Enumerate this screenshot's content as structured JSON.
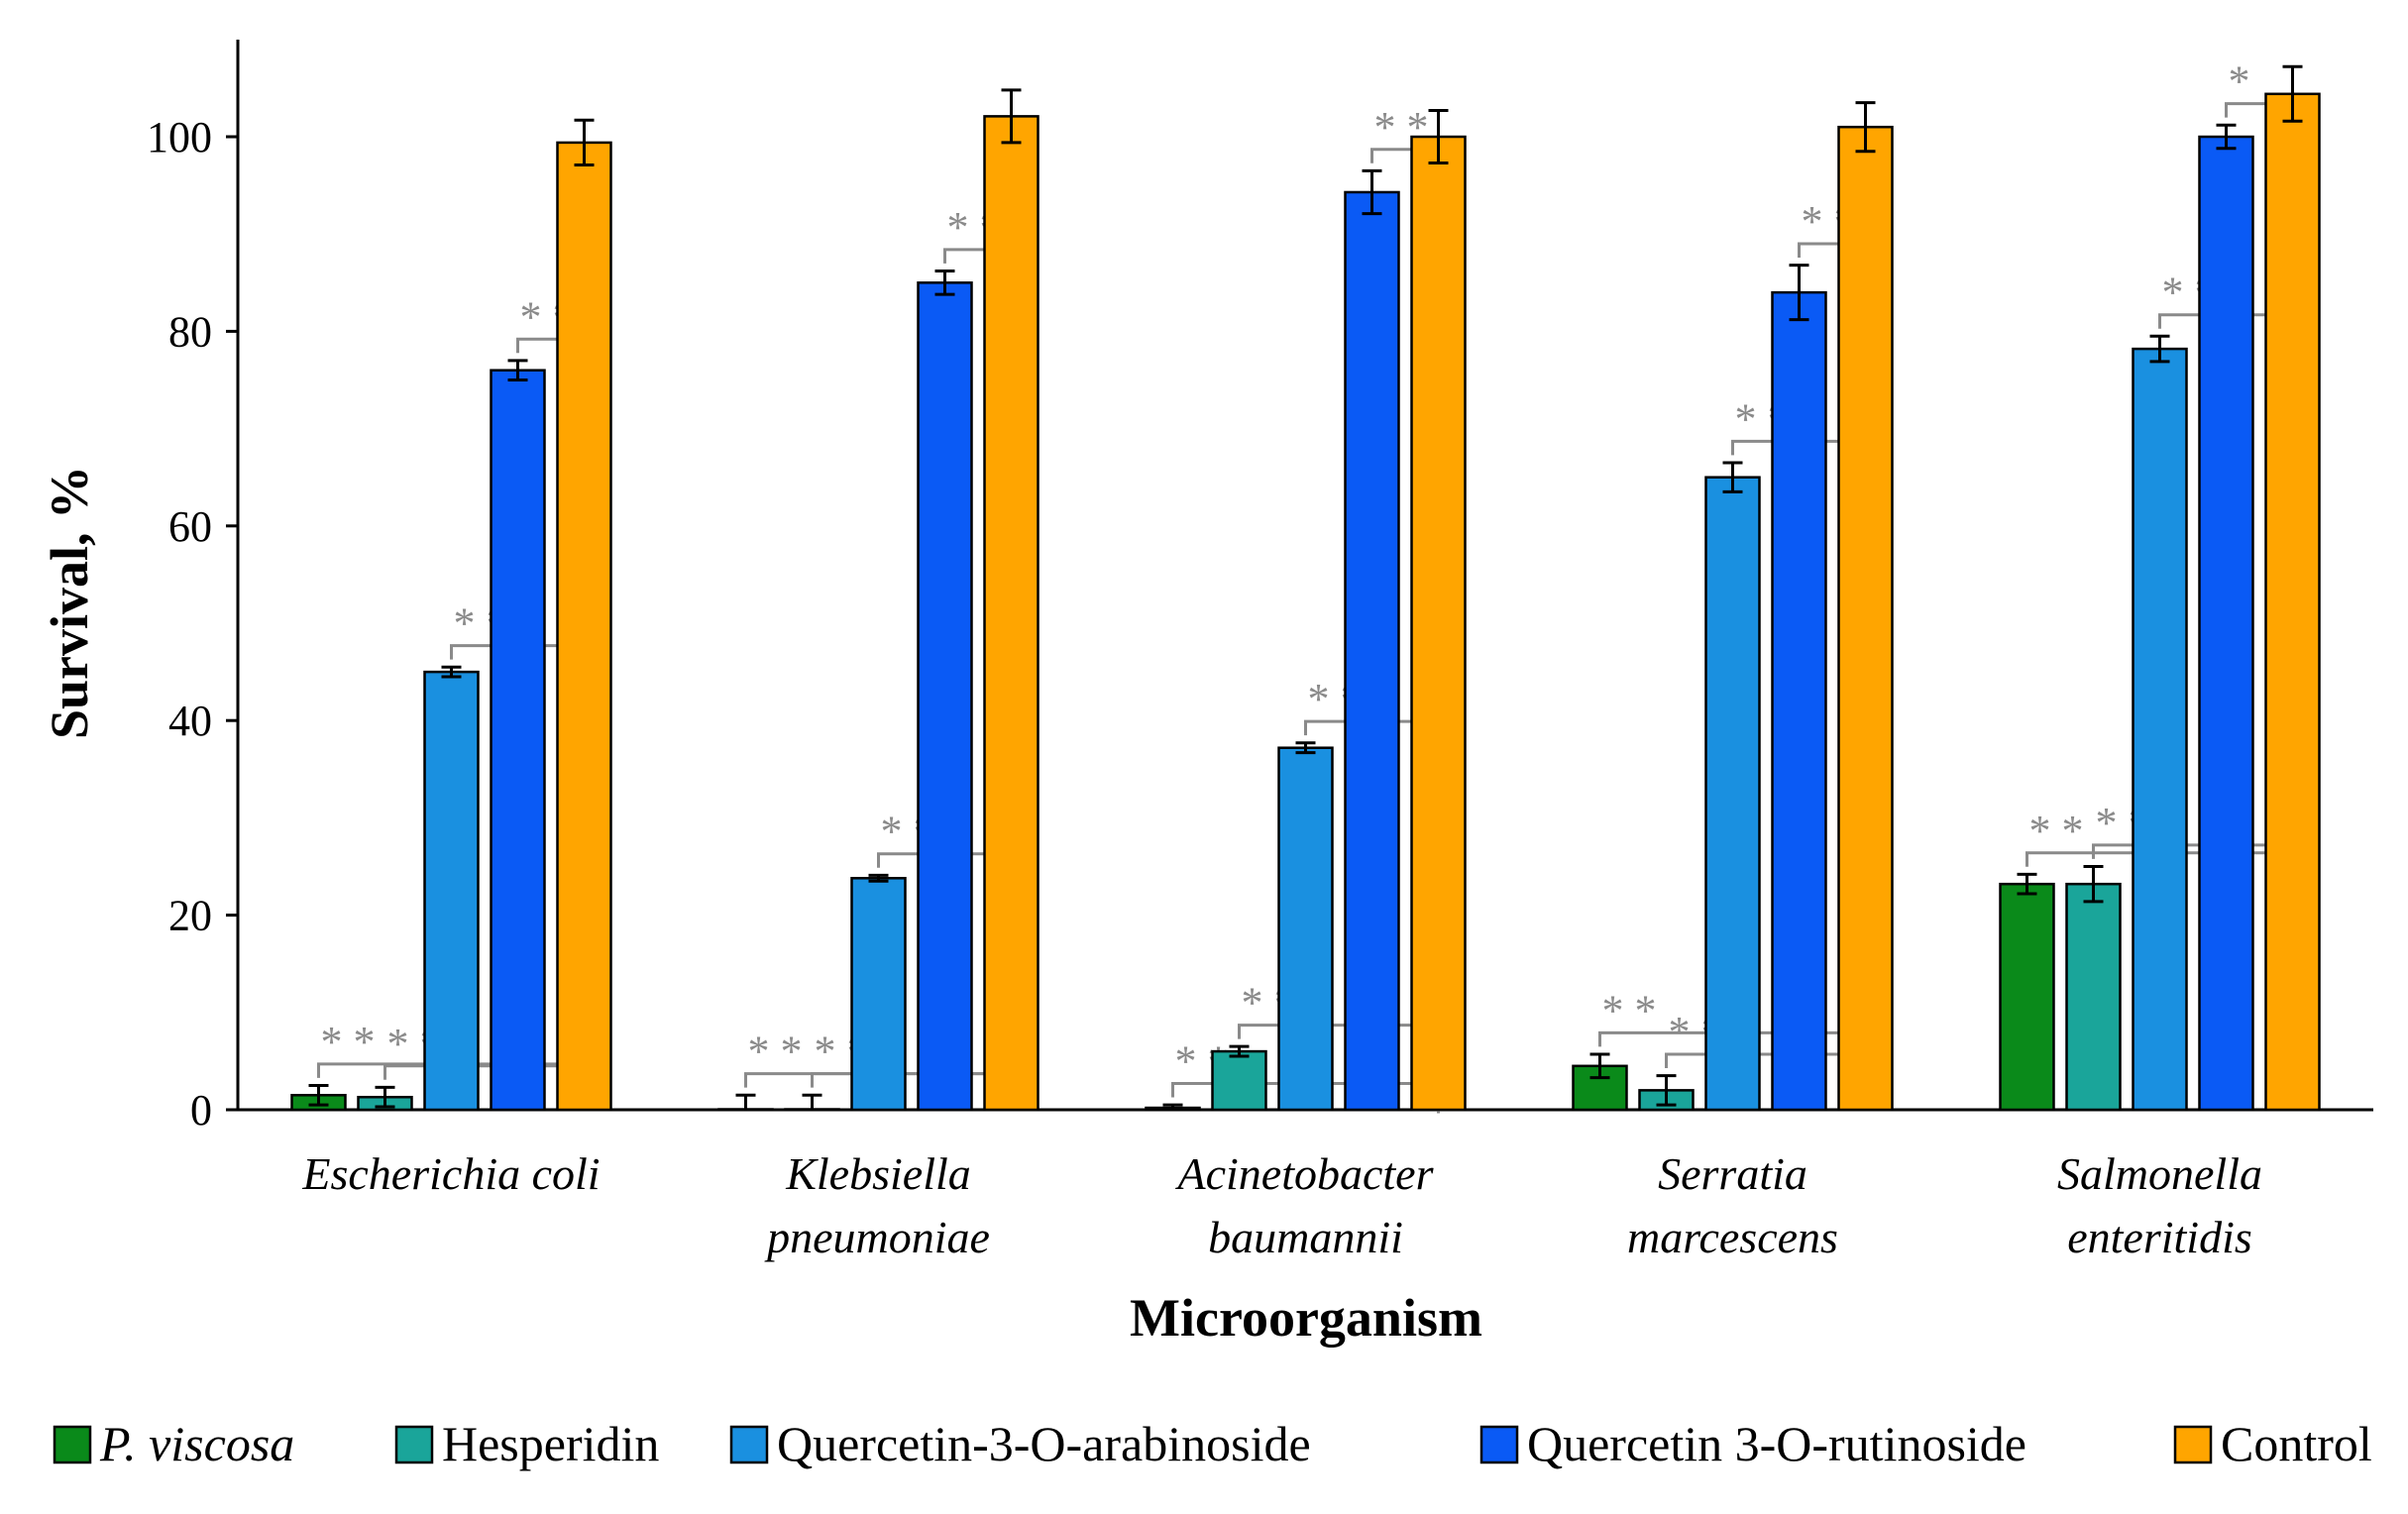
{
  "chart_data": {
    "type": "bar",
    "title": "",
    "xlabel": "Microorganism",
    "ylabel": "Survival, %",
    "ylim": [
      0,
      110
    ],
    "yticks": [
      0,
      20,
      40,
      60,
      80,
      100
    ],
    "categories": [
      [
        "Escherichia coli"
      ],
      [
        "Klebsiella",
        "pneumoniae"
      ],
      [
        "Acinetobacter",
        "baumannii"
      ],
      [
        "Serratia",
        "marcescens"
      ],
      [
        "Salmonella",
        "enteritidis"
      ]
    ],
    "series": [
      {
        "name": "P. viscosa",
        "italic": true,
        "color": "#0a8a1a",
        "values": [
          1.5,
          0,
          0.2,
          4.5,
          23.2
        ],
        "errors": [
          1.0,
          1.5,
          0.3,
          1.2,
          1.0
        ]
      },
      {
        "name": "Hesperidin",
        "italic": false,
        "color": "#1aa59a",
        "values": [
          1.3,
          0,
          6.0,
          2.0,
          23.2
        ],
        "errors": [
          1.0,
          1.5,
          0.5,
          1.5,
          1.8
        ]
      },
      {
        "name": "Quercetin-3-O-arabinoside",
        "italic": false,
        "color": "#1a90e0",
        "values": [
          45.0,
          23.8,
          37.2,
          65.0,
          78.2
        ],
        "errors": [
          0.5,
          0.3,
          0.5,
          1.5,
          1.3
        ]
      },
      {
        "name": "Quercetin 3-O-rutinoside",
        "italic": false,
        "color": "#0a5af5",
        "values": [
          76.0,
          85.0,
          94.3,
          84.0,
          100.0
        ],
        "errors": [
          1.0,
          1.2,
          2.2,
          2.8,
          1.2
        ]
      },
      {
        "name": "Control",
        "italic": false,
        "color": "#ffa500",
        "values": [
          99.4,
          102.1,
          100.0,
          101.0,
          104.4
        ],
        "errors": [
          2.3,
          2.7,
          2.7,
          2.5,
          2.8
        ]
      }
    ],
    "significance": [
      {
        "category": 0,
        "from": 0,
        "to": 4,
        "label": "**"
      },
      {
        "category": 0,
        "from": 1,
        "to": 4,
        "label": "**"
      },
      {
        "category": 0,
        "from": 2,
        "to": 4,
        "label": "**"
      },
      {
        "category": 0,
        "from": 3,
        "to": 4,
        "label": "**"
      },
      {
        "category": 1,
        "from": 0,
        "to": 4,
        "label": "**"
      },
      {
        "category": 1,
        "from": 1,
        "to": 4,
        "label": "**"
      },
      {
        "category": 1,
        "from": 2,
        "to": 4,
        "label": "**"
      },
      {
        "category": 1,
        "from": 3,
        "to": 4,
        "label": "**"
      },
      {
        "category": 2,
        "from": 0,
        "to": 4,
        "label": "**"
      },
      {
        "category": 2,
        "from": 1,
        "to": 4,
        "label": "**"
      },
      {
        "category": 2,
        "from": 2,
        "to": 4,
        "label": "**"
      },
      {
        "category": 2,
        "from": 3,
        "to": 4,
        "label": "**"
      },
      {
        "category": 3,
        "from": 0,
        "to": 4,
        "label": "**"
      },
      {
        "category": 3,
        "from": 1,
        "to": 4,
        "label": "**"
      },
      {
        "category": 3,
        "from": 2,
        "to": 4,
        "label": "**"
      },
      {
        "category": 3,
        "from": 3,
        "to": 4,
        "label": "**"
      },
      {
        "category": 4,
        "from": 0,
        "to": 4,
        "label": "**"
      },
      {
        "category": 4,
        "from": 1,
        "to": 4,
        "label": "**"
      },
      {
        "category": 4,
        "from": 2,
        "to": 4,
        "label": "**"
      },
      {
        "category": 4,
        "from": 3,
        "to": 4,
        "label": "*"
      }
    ],
    "legend_position": "bottom"
  }
}
